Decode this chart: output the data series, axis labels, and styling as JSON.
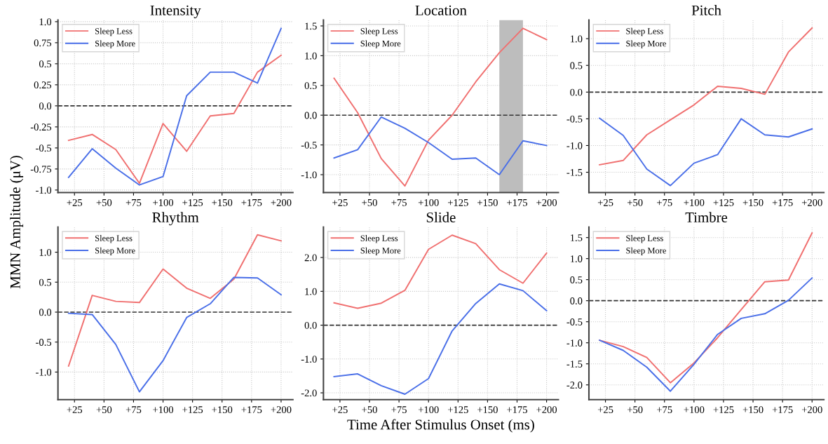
{
  "chart_data": [
    {
      "type": "line",
      "title": "Intensity",
      "ylabel": "MMN Amplitude (μV)",
      "x": [
        20,
        40,
        60,
        80,
        100,
        120,
        140,
        160,
        180,
        200
      ],
      "xlim": [
        11,
        210
      ],
      "xticks": [
        {
          "value": 25,
          "label": "+25"
        },
        {
          "value": 50,
          "label": "+50"
        },
        {
          "value": 75,
          "label": "+75"
        },
        {
          "value": 100,
          "label": "+100"
        },
        {
          "value": 125,
          "label": "+125"
        },
        {
          "value": 150,
          "label": "+150"
        },
        {
          "value": 175,
          "label": "+175"
        },
        {
          "value": 200,
          "label": "+200"
        }
      ],
      "ylim": [
        -1.03,
        1.02
      ],
      "yticks": [
        {
          "value": -1.0,
          "label": "-1.0"
        },
        {
          "value": -0.75,
          "label": "-0.75"
        },
        {
          "value": -0.5,
          "label": "-0.5"
        },
        {
          "value": -0.25,
          "label": "-0.25"
        },
        {
          "value": 0.0,
          "label": "0.0"
        },
        {
          "value": 0.25,
          "label": "0.25"
        },
        {
          "value": 0.5,
          "label": "0.5"
        },
        {
          "value": 0.75,
          "label": "0.75"
        },
        {
          "value": 1.0,
          "label": "1.0"
        }
      ],
      "series": [
        {
          "name": "Sleep Less",
          "color": "#f07070",
          "values": [
            -0.41,
            -0.34,
            -0.52,
            -0.92,
            -0.21,
            -0.54,
            -0.12,
            -0.09,
            0.4,
            0.6
          ]
        },
        {
          "name": "Sleep More",
          "color": "#4a6fe8",
          "values": [
            -0.85,
            -0.51,
            -0.74,
            -0.94,
            -0.84,
            0.12,
            0.4,
            0.4,
            0.27,
            0.92
          ]
        }
      ],
      "ref_lines": [
        {
          "axis": "y",
          "value": 0,
          "color": "#333333",
          "line_style": "dashed"
        }
      ],
      "grid": true,
      "legend": "top left",
      "line_style": "solid"
    },
    {
      "type": "line",
      "title": "Location",
      "x": [
        20,
        40,
        60,
        80,
        100,
        120,
        140,
        160,
        180,
        200
      ],
      "xlim": [
        11,
        210
      ],
      "xticks": [
        {
          "value": 25,
          "label": "+25"
        },
        {
          "value": 50,
          "label": "+50"
        },
        {
          "value": 75,
          "label": "+75"
        },
        {
          "value": 100,
          "label": "+100"
        },
        {
          "value": 125,
          "label": "+125"
        },
        {
          "value": 150,
          "label": "+150"
        },
        {
          "value": 175,
          "label": "+175"
        },
        {
          "value": 200,
          "label": "+200"
        }
      ],
      "ylim": [
        -1.3,
        1.6
      ],
      "yticks": [
        {
          "value": -1.0,
          "label": "-1.0"
        },
        {
          "value": -0.5,
          "label": "-0.5"
        },
        {
          "value": 0.0,
          "label": "0.0"
        },
        {
          "value": 0.5,
          "label": "0.5"
        },
        {
          "value": 1.0,
          "label": "1.0"
        },
        {
          "value": 1.5,
          "label": "1.5"
        }
      ],
      "series": [
        {
          "name": "Sleep Less",
          "color": "#f07070",
          "values": [
            0.62,
            0.04,
            -0.73,
            -1.19,
            -0.42,
            0.0,
            0.56,
            1.05,
            1.46,
            1.27
          ]
        },
        {
          "name": "Sleep More",
          "color": "#4a6fe8",
          "values": [
            -0.72,
            -0.58,
            -0.03,
            -0.22,
            -0.46,
            -0.74,
            -0.72,
            -1.0,
            -0.43,
            -0.51
          ]
        }
      ],
      "ref_lines": [
        {
          "axis": "y",
          "value": 0,
          "color": "#333333",
          "line_style": "dashed"
        }
      ],
      "bands": [
        {
          "axis": "x",
          "from": 160,
          "to": 180,
          "color": "#bdbdbd"
        }
      ],
      "grid": true,
      "legend": "top left",
      "line_style": "solid"
    },
    {
      "type": "line",
      "title": "Pitch",
      "x": [
        20,
        40,
        60,
        80,
        100,
        120,
        140,
        160,
        180,
        200
      ],
      "xlim": [
        11,
        210
      ],
      "xticks": [
        {
          "value": 25,
          "label": "+25"
        },
        {
          "value": 50,
          "label": "+50"
        },
        {
          "value": 75,
          "label": "+75"
        },
        {
          "value": 100,
          "label": "+100"
        },
        {
          "value": 125,
          "label": "+125"
        },
        {
          "value": 150,
          "label": "+150"
        },
        {
          "value": 175,
          "label": "+175"
        },
        {
          "value": 200,
          "label": "+200"
        }
      ],
      "ylim": [
        -1.88,
        1.35
      ],
      "yticks": [
        {
          "value": -1.5,
          "label": "-1.5"
        },
        {
          "value": -1.0,
          "label": "-1.0"
        },
        {
          "value": -0.5,
          "label": "-0.5"
        },
        {
          "value": 0.0,
          "label": "0.0"
        },
        {
          "value": 0.5,
          "label": "0.5"
        },
        {
          "value": 1.0,
          "label": "1.0"
        }
      ],
      "series": [
        {
          "name": "Sleep Less",
          "color": "#f07070",
          "values": [
            -1.36,
            -1.28,
            -0.8,
            -0.52,
            -0.24,
            0.11,
            0.07,
            -0.04,
            0.75,
            1.2
          ]
        },
        {
          "name": "Sleep More",
          "color": "#4a6fe8",
          "values": [
            -0.49,
            -0.81,
            -1.44,
            -1.75,
            -1.33,
            -1.17,
            -0.5,
            -0.8,
            -0.84,
            -0.69
          ]
        }
      ],
      "ref_lines": [
        {
          "axis": "y",
          "value": 0,
          "color": "#333333",
          "line_style": "dashed"
        }
      ],
      "grid": true,
      "legend": "top left",
      "line_style": "solid"
    },
    {
      "type": "line",
      "title": "Rhythm",
      "x": [
        20,
        40,
        60,
        80,
        100,
        120,
        140,
        160,
        180,
        200
      ],
      "xlim": [
        11,
        210
      ],
      "xticks": [
        {
          "value": 25,
          "label": "+25"
        },
        {
          "value": 50,
          "label": "+50"
        },
        {
          "value": 75,
          "label": "+75"
        },
        {
          "value": 100,
          "label": "+100"
        },
        {
          "value": 125,
          "label": "+125"
        },
        {
          "value": 150,
          "label": "+150"
        },
        {
          "value": 175,
          "label": "+175"
        },
        {
          "value": 200,
          "label": "+200"
        }
      ],
      "ylim": [
        -1.46,
        1.42
      ],
      "yticks": [
        {
          "value": -1.0,
          "label": "-1.0"
        },
        {
          "value": -0.5,
          "label": "-0.5"
        },
        {
          "value": 0.0,
          "label": "0.0"
        },
        {
          "value": 0.5,
          "label": "0.5"
        },
        {
          "value": 1.0,
          "label": "1.0"
        }
      ],
      "series": [
        {
          "name": "Sleep Less",
          "color": "#f07070",
          "values": [
            -0.9,
            0.28,
            0.18,
            0.16,
            0.72,
            0.4,
            0.23,
            0.55,
            1.29,
            1.19
          ]
        },
        {
          "name": "Sleep More",
          "color": "#4a6fe8",
          "values": [
            -0.02,
            -0.04,
            -0.54,
            -1.33,
            -0.81,
            -0.09,
            0.14,
            0.58,
            0.57,
            0.29
          ]
        }
      ],
      "ref_lines": [
        {
          "axis": "y",
          "value": 0,
          "color": "#333333",
          "line_style": "dashed"
        }
      ],
      "grid": true,
      "legend": "top left",
      "line_style": "solid"
    },
    {
      "type": "line",
      "title": "Slide",
      "xlabel": "Time After Stimulus Onset (ms)",
      "x": [
        20,
        40,
        60,
        80,
        100,
        120,
        140,
        160,
        180,
        200
      ],
      "xlim": [
        11,
        210
      ],
      "xticks": [
        {
          "value": 25,
          "label": "+25"
        },
        {
          "value": 50,
          "label": "+50"
        },
        {
          "value": 75,
          "label": "+75"
        },
        {
          "value": 100,
          "label": "+100"
        },
        {
          "value": 125,
          "label": "+125"
        },
        {
          "value": 150,
          "label": "+150"
        },
        {
          "value": 175,
          "label": "+175"
        },
        {
          "value": 200,
          "label": "+200"
        }
      ],
      "ylim": [
        -2.2,
        2.9
      ],
      "yticks": [
        {
          "value": -2.0,
          "label": "-2.0"
        },
        {
          "value": -1.0,
          "label": "-1.0"
        },
        {
          "value": 0.0,
          "label": "0.0"
        },
        {
          "value": 1.0,
          "label": "1.0"
        },
        {
          "value": 2.0,
          "label": "2.0"
        }
      ],
      "series": [
        {
          "name": "Sleep Less",
          "color": "#f07070",
          "values": [
            0.66,
            0.5,
            0.65,
            1.03,
            2.24,
            2.66,
            2.41,
            1.64,
            1.24,
            2.13
          ]
        },
        {
          "name": "Sleep More",
          "color": "#4a6fe8",
          "values": [
            -1.52,
            -1.44,
            -1.79,
            -2.04,
            -1.58,
            -0.17,
            0.64,
            1.22,
            1.02,
            0.43
          ]
        }
      ],
      "ref_lines": [
        {
          "axis": "y",
          "value": 0,
          "color": "#333333",
          "line_style": "dashed"
        }
      ],
      "grid": true,
      "legend": "top left",
      "line_style": "solid"
    },
    {
      "type": "line",
      "title": "Timbre",
      "x": [
        20,
        40,
        60,
        80,
        100,
        120,
        140,
        160,
        180,
        200
      ],
      "xlim": [
        11,
        210
      ],
      "xticks": [
        {
          "value": 25,
          "label": "+25"
        },
        {
          "value": 50,
          "label": "+50"
        },
        {
          "value": 75,
          "label": "+75"
        },
        {
          "value": 100,
          "label": "+100"
        },
        {
          "value": 125,
          "label": "+125"
        },
        {
          "value": 150,
          "label": "+150"
        },
        {
          "value": 175,
          "label": "+175"
        },
        {
          "value": 200,
          "label": "+200"
        }
      ],
      "ylim": [
        -2.35,
        1.75
      ],
      "yticks": [
        {
          "value": -2.0,
          "label": "-2.0"
        },
        {
          "value": -1.5,
          "label": "-1.5"
        },
        {
          "value": -1.0,
          "label": "-1.0"
        },
        {
          "value": -0.5,
          "label": "-0.5"
        },
        {
          "value": 0.0,
          "label": "0.0"
        },
        {
          "value": 0.5,
          "label": "0.5"
        },
        {
          "value": 1.0,
          "label": "1.0"
        },
        {
          "value": 1.5,
          "label": "1.5"
        }
      ],
      "series": [
        {
          "name": "Sleep Less",
          "color": "#f07070",
          "values": [
            -0.94,
            -1.09,
            -1.35,
            -1.95,
            -1.48,
            -0.88,
            -0.21,
            0.45,
            0.49,
            1.61
          ]
        },
        {
          "name": "Sleep More",
          "color": "#4a6fe8",
          "values": [
            -0.94,
            -1.18,
            -1.58,
            -2.15,
            -1.51,
            -0.8,
            -0.42,
            -0.31,
            0.01,
            0.54
          ]
        }
      ],
      "ref_lines": [
        {
          "axis": "y",
          "value": 0,
          "color": "#333333",
          "line_style": "dashed"
        }
      ],
      "grid": true,
      "legend": "top left",
      "line_style": "solid"
    }
  ]
}
